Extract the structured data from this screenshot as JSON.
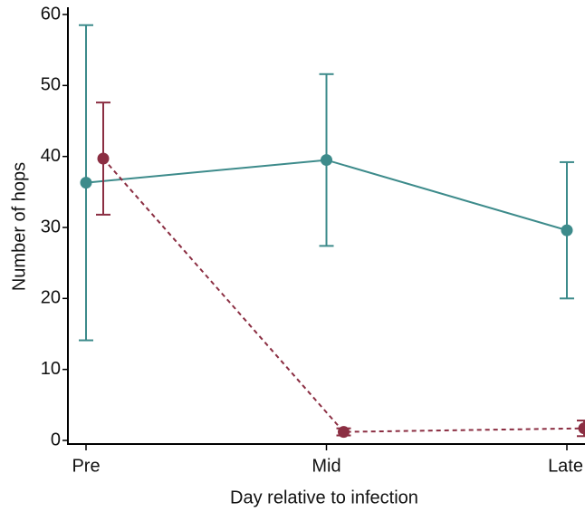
{
  "chart_data": {
    "type": "line",
    "xlabel": "Day relative to infection",
    "ylabel": "Number of hops",
    "categories": [
      "Pre",
      "Mid",
      "Late"
    ],
    "series": [
      {
        "color": "#3d8b8b",
        "linestyle": "solid",
        "values": [
          36.3,
          39.5,
          29.6
        ],
        "errors": [
          22.2,
          12.1,
          9.6
        ]
      },
      {
        "color": "#8b2e42",
        "linestyle": "dashed",
        "values": [
          39.7,
          1.2,
          1.7
        ],
        "errors": [
          7.9,
          0.5,
          1.1
        ]
      }
    ],
    "ylim": [
      0,
      60
    ],
    "yticks": [
      0,
      10,
      20,
      30,
      40,
      50,
      60
    ],
    "grid": false
  }
}
